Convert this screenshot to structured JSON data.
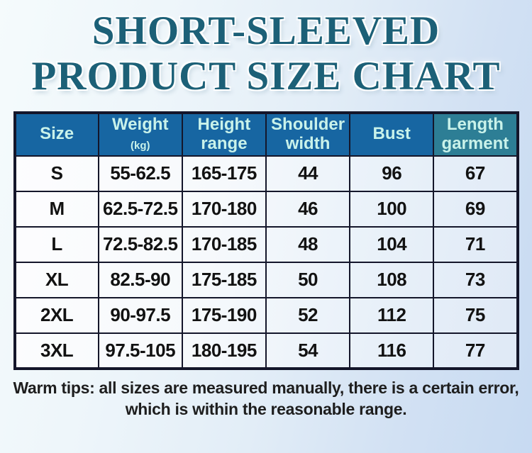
{
  "title": {
    "line1": "SHORT-SLEEVED",
    "line2": "PRODUCT SIZE CHART"
  },
  "table": {
    "columns": [
      {
        "label": "Size"
      },
      {
        "label": "Weight",
        "suffix": "(kg)"
      },
      {
        "label": "Height range"
      },
      {
        "label": "Shoulder width"
      },
      {
        "label": "Bust"
      },
      {
        "label": "Length garment"
      }
    ],
    "rows": [
      [
        "S",
        "55-62.5",
        "165-175",
        "44",
        "96",
        "67"
      ],
      [
        "M",
        "62.5-72.5",
        "170-180",
        "46",
        "100",
        "69"
      ],
      [
        "L",
        "72.5-82.5",
        "170-185",
        "48",
        "104",
        "71"
      ],
      [
        "XL",
        "82.5-90",
        "175-185",
        "50",
        "108",
        "73"
      ],
      [
        "2XL",
        "90-97.5",
        "175-190",
        "52",
        "112",
        "75"
      ],
      [
        "3XL",
        "97.5-105",
        "180-195",
        "54",
        "116",
        "77"
      ]
    ]
  },
  "footer": {
    "line1": "Warm tips: all sizes are measured manually, there is a certain error,",
    "line2": "which is within the reasonable range."
  },
  "colors": {
    "bg_start": "#f5fbfc",
    "bg_end": "#c7daf2",
    "title_color": "#1c6077",
    "header_bg": "#1766a2",
    "header_bg_alt": "#2d7e95",
    "header_text": "#c9f2ea",
    "border_color": "#14162a",
    "cell_text": "#121212",
    "tip_text": "#1e1e1e"
  },
  "chart_data": {
    "type": "table",
    "title": "SHORT-SLEEVED PRODUCT SIZE CHART",
    "columns": [
      "Size",
      "Weight (kg)",
      "Height range",
      "Shoulder width",
      "Bust",
      "Length garment"
    ],
    "rows": [
      [
        "S",
        "55-62.5",
        "165-175",
        44,
        96,
        67
      ],
      [
        "M",
        "62.5-72.5",
        "170-180",
        46,
        100,
        69
      ],
      [
        "L",
        "72.5-82.5",
        "170-185",
        48,
        104,
        71
      ],
      [
        "XL",
        "82.5-90",
        "175-185",
        50,
        108,
        73
      ],
      [
        "2XL",
        "90-97.5",
        "175-190",
        52,
        112,
        75
      ],
      [
        "3XL",
        "97.5-105",
        "180-195",
        54,
        116,
        77
      ]
    ],
    "note": "Warm tips: all sizes are measured manually, there is a certain error, which is within the reasonable range."
  }
}
